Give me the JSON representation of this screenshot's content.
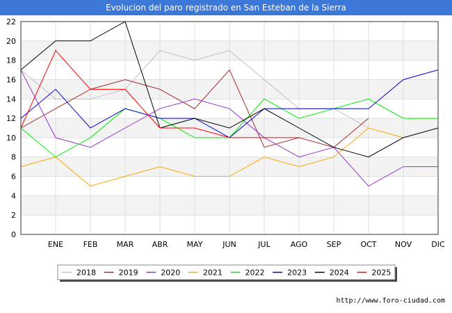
{
  "chart_data": {
    "type": "line",
    "title": "Evolucion del paro registrado en San Esteban de la Sierra",
    "categories": [
      "",
      "ENE",
      "FEB",
      "MAR",
      "ABR",
      "MAY",
      "JUN",
      "JUL",
      "AGO",
      "SEP",
      "OCT",
      "NOV",
      "DIC"
    ],
    "ylim": [
      0,
      22
    ],
    "yticks": [
      0,
      2,
      4,
      6,
      8,
      10,
      12,
      14,
      16,
      18,
      20,
      22
    ],
    "grid": true,
    "legend_position": "bottom",
    "series": [
      {
        "name": "2018",
        "color": "#c0c0c0",
        "values": [
          17,
          14,
          14,
          15,
          19,
          18,
          19,
          16,
          13,
          13,
          11,
          null,
          null
        ]
      },
      {
        "name": "2019",
        "color": "#a52a2a",
        "values": [
          11,
          13,
          15,
          16,
          15,
          13,
          17,
          9,
          10,
          9,
          12,
          null,
          null
        ]
      },
      {
        "name": "2020",
        "color": "#9932cc",
        "values": [
          17,
          10,
          9,
          11,
          13,
          14,
          13,
          10,
          8,
          9,
          5,
          7,
          7
        ]
      },
      {
        "name": "2021",
        "color": "#ffa500",
        "values": [
          7,
          8,
          5,
          6,
          7,
          6,
          6,
          8,
          7,
          8,
          11,
          10,
          null
        ]
      },
      {
        "name": "2022",
        "color": "#00ee00",
        "values": [
          11,
          8,
          10,
          13,
          12,
          10,
          10,
          14,
          12,
          13,
          14,
          12,
          12
        ]
      },
      {
        "name": "2023",
        "color": "#0000cd",
        "values": [
          12,
          15,
          11,
          13,
          12,
          12,
          10,
          13,
          13,
          13,
          13,
          16,
          17
        ]
      },
      {
        "name": "2024",
        "color": "#000000",
        "values": [
          17,
          20,
          20,
          22,
          11,
          12,
          11,
          13,
          11,
          9,
          8,
          10,
          11
        ]
      },
      {
        "name": "2025",
        "color": "#ff0000",
        "values": [
          11,
          19,
          15,
          15,
          11,
          11,
          10,
          10,
          10,
          null,
          null,
          null,
          null
        ]
      }
    ]
  },
  "footer": {
    "url": "http://www.foro-ciudad.com"
  }
}
